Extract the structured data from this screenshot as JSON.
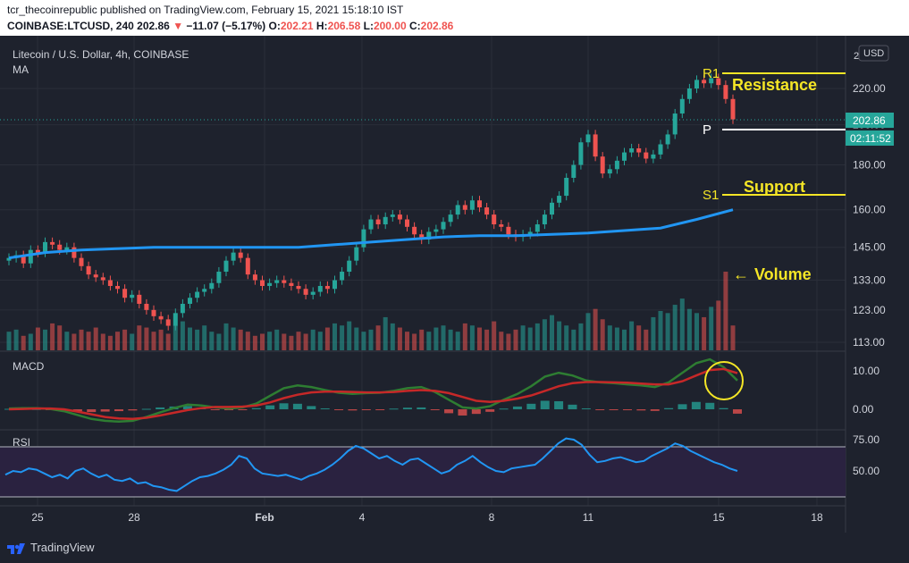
{
  "header": {
    "line1": "tcr_thecoinrepublic published on TradingView.com, February 15, 2021 15:18:10 IST",
    "symbol": "COINBASE:LTCUSD, 240",
    "last": "202.86",
    "arrow": "▼",
    "change": "−11.07 (−5.17%)",
    "o_label": "O:",
    "o": "202.21",
    "h_label": "H:",
    "h": "206.58",
    "l_label": "L:",
    "l": "200.00",
    "c_label": "C:",
    "c": "202.86"
  },
  "pane_main": {
    "title": "Litecoin / U.S. Dollar, 4h, COINBASE",
    "indicator": "MA",
    "currency_button": "USD",
    "price_label": "202.86",
    "countdown_label": "02:11:52",
    "top_tick": "2",
    "annotations": {
      "r1": "R1",
      "resistance": "Resistance",
      "p": "P",
      "s1": "S1",
      "support": "Support",
      "volume": "Volume",
      "volume_arrow": "←"
    }
  },
  "pane_macd": {
    "title": "MACD"
  },
  "pane_rsi": {
    "title": "RSI"
  },
  "footer": {
    "brand": "TradingView"
  },
  "colors": {
    "background": "#1e222d",
    "up": "#26a69a",
    "down": "#ef5350",
    "ma": "#2196f3",
    "annotation": "#f5e626",
    "macd_line": "#2e7d32",
    "signal_line": "#c62828",
    "rsi_line": "#2196f3",
    "rsi_band": "#2a2240"
  },
  "chart_data": [
    {
      "type": "candlestick",
      "title": "Litecoin / U.S. Dollar, 4h, COINBASE",
      "x_ticks": [
        "25",
        "28",
        "Feb",
        "4",
        "8",
        "11",
        "15",
        "18"
      ],
      "y_ticks": [
        220.0,
        200.0,
        180.0,
        160.0,
        145.0,
        133.0,
        123.0,
        113.0
      ],
      "y_scale": "log",
      "close": [
        141,
        142,
        139,
        144,
        143,
        147,
        146,
        144,
        145,
        141,
        138,
        135,
        134,
        133,
        131,
        130,
        127,
        128,
        125,
        123,
        121,
        120,
        118,
        122,
        125,
        127,
        129,
        130,
        132,
        136,
        140,
        143,
        141,
        135,
        133,
        131,
        132,
        133,
        132,
        131,
        130,
        128,
        129,
        131,
        130,
        133,
        136,
        140,
        145,
        152,
        156,
        154,
        157,
        158,
        156,
        153,
        150,
        148,
        151,
        152,
        155,
        158,
        162,
        160,
        164,
        161,
        158,
        154,
        153,
        150,
        149,
        150,
        151,
        154,
        158,
        163,
        166,
        174,
        180,
        191,
        195,
        184,
        176,
        178,
        182,
        186,
        188,
        186,
        183,
        185,
        190,
        195,
        206,
        214,
        220,
        225,
        223,
        226,
        222,
        214,
        202.86
      ],
      "volume": [
        9,
        10,
        7,
        8,
        11,
        10,
        13,
        12,
        9,
        8,
        10,
        9,
        11,
        8,
        7,
        9,
        10,
        8,
        12,
        11,
        9,
        10,
        8,
        12,
        14,
        11,
        10,
        12,
        9,
        8,
        13,
        11,
        10,
        9,
        7,
        8,
        9,
        10,
        8,
        7,
        9,
        8,
        10,
        9,
        11,
        13,
        12,
        14,
        11,
        9,
        10,
        12,
        16,
        13,
        11,
        9,
        8,
        10,
        9,
        11,
        12,
        10,
        9,
        13,
        12,
        11,
        10,
        14,
        9,
        8,
        10,
        12,
        11,
        13,
        15,
        17,
        14,
        12,
        10,
        13,
        18,
        20,
        15,
        12,
        11,
        10,
        14,
        12,
        10,
        16,
        19,
        18,
        22,
        25,
        20,
        18,
        16,
        21,
        24,
        38,
        12
      ],
      "ma": {
        "x": [
          0,
          5,
          10,
          15,
          20,
          25,
          30,
          35,
          40,
          45,
          50,
          55,
          60,
          65,
          70,
          75,
          80,
          85,
          90,
          95,
          100
        ],
        "values": [
          141,
          143,
          144,
          144.5,
          145,
          145,
          145,
          145,
          145,
          146,
          147,
          148,
          149,
          149.5,
          149.5,
          150,
          150.5,
          151.5,
          152.5,
          156,
          160
        ]
      },
      "levels": {
        "R1": 224,
        "P": 196.5,
        "S1": 169
      },
      "last_price": 202.86
    },
    {
      "type": "line",
      "title": "MACD",
      "y_ticks": [
        10.0,
        0.0
      ],
      "series": [
        {
          "values": [
            0.2,
            0.3,
            0.3,
            0.1,
            -0.5,
            -1.5,
            -2.5,
            -3.0,
            -3.2,
            -3.0,
            -2.0,
            -0.8,
            0.3,
            1.2,
            1.0,
            0.5,
            0.2,
            0.5,
            1.5,
            3.5,
            5.5,
            6.2,
            5.8,
            5.0,
            4.3,
            4.0,
            4.2,
            4.3,
            4.8,
            5.5,
            5.8,
            4.5,
            2.5,
            0.5,
            0.2,
            0.8,
            2.5,
            4.0,
            6.0,
            8.5,
            9.5,
            8.8,
            7.5,
            7.0,
            6.8,
            6.5,
            6.2,
            5.8,
            7.0,
            9.5,
            12.0,
            13.0,
            11.0,
            7.5
          ]
        },
        {
          "values": [
            0.0,
            0.1,
            0.2,
            0.2,
            0.0,
            -0.6,
            -1.3,
            -2.0,
            -2.4,
            -2.5,
            -2.2,
            -1.6,
            -0.9,
            -0.2,
            0.3,
            0.6,
            0.6,
            0.7,
            1.0,
            1.8,
            2.9,
            3.8,
            4.4,
            4.6,
            4.6,
            4.5,
            4.4,
            4.4,
            4.5,
            4.8,
            5.0,
            4.8,
            4.2,
            3.2,
            2.2,
            1.9,
            2.2,
            2.8,
            3.6,
            4.8,
            6.0,
            6.8,
            7.1,
            7.1,
            7.0,
            6.9,
            6.7,
            6.5,
            6.5,
            7.3,
            8.8,
            10.2,
            10.5,
            9.4
          ]
        }
      ]
    },
    {
      "type": "line",
      "title": "RSI",
      "y_ticks": [
        75.0,
        50.0
      ],
      "ylim": [
        30,
        80
      ],
      "bands": [
        70,
        30
      ],
      "values": [
        47,
        50,
        49,
        52,
        51,
        48,
        45,
        47,
        44,
        50,
        52,
        48,
        45,
        47,
        43,
        42,
        44,
        40,
        41,
        38,
        37,
        35,
        34,
        38,
        42,
        45,
        46,
        48,
        51,
        55,
        62,
        60,
        52,
        48,
        47,
        46,
        47,
        45,
        43,
        46,
        48,
        51,
        55,
        60,
        66,
        70,
        68,
        64,
        60,
        62,
        58,
        55,
        59,
        60,
        56,
        52,
        48,
        50,
        55,
        58,
        62,
        57,
        53,
        50,
        49,
        52,
        53,
        54,
        55,
        60,
        66,
        72,
        76,
        75,
        71,
        63,
        57,
        58,
        60,
        61,
        59,
        57,
        58,
        62,
        65,
        68,
        72,
        70,
        66,
        63,
        60,
        57,
        55,
        52,
        50
      ]
    }
  ]
}
